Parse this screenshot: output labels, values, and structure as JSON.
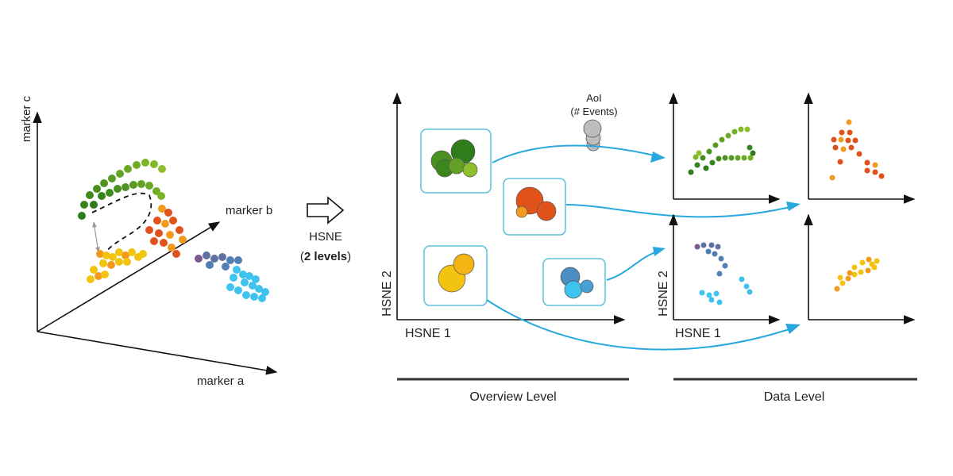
{
  "left_panel": {
    "axes": {
      "marker_a": "marker a",
      "marker_b": "marker b",
      "marker_c": "marker c"
    }
  },
  "transform": {
    "method": "HSNE",
    "levels_open": "(",
    "levels_bold": "2 levels",
    "levels_close": ")"
  },
  "overview": {
    "xlabel": "HSNE 1",
    "ylabel": "HSNE 2",
    "aoi_label_line1": "AoI",
    "aoi_label_line2": "(# Events)",
    "section_label": "Overview Level"
  },
  "data_level": {
    "xlabel": "HSNE 1",
    "ylabel": "HSNE 2",
    "section_label": "Data Level"
  },
  "colors": {
    "green_dark": "#2e7d1a",
    "green_light": "#8cbf2a",
    "orange_red": "#e0521a",
    "orange": "#f39a1e",
    "yellow": "#f2c40f",
    "purple": "#7a5a8a",
    "steel_blue": "#4f7fb5",
    "cyan": "#3ec3ef",
    "arrow_blue": "#28a8dc",
    "box_border": "#5bc1dc"
  }
}
